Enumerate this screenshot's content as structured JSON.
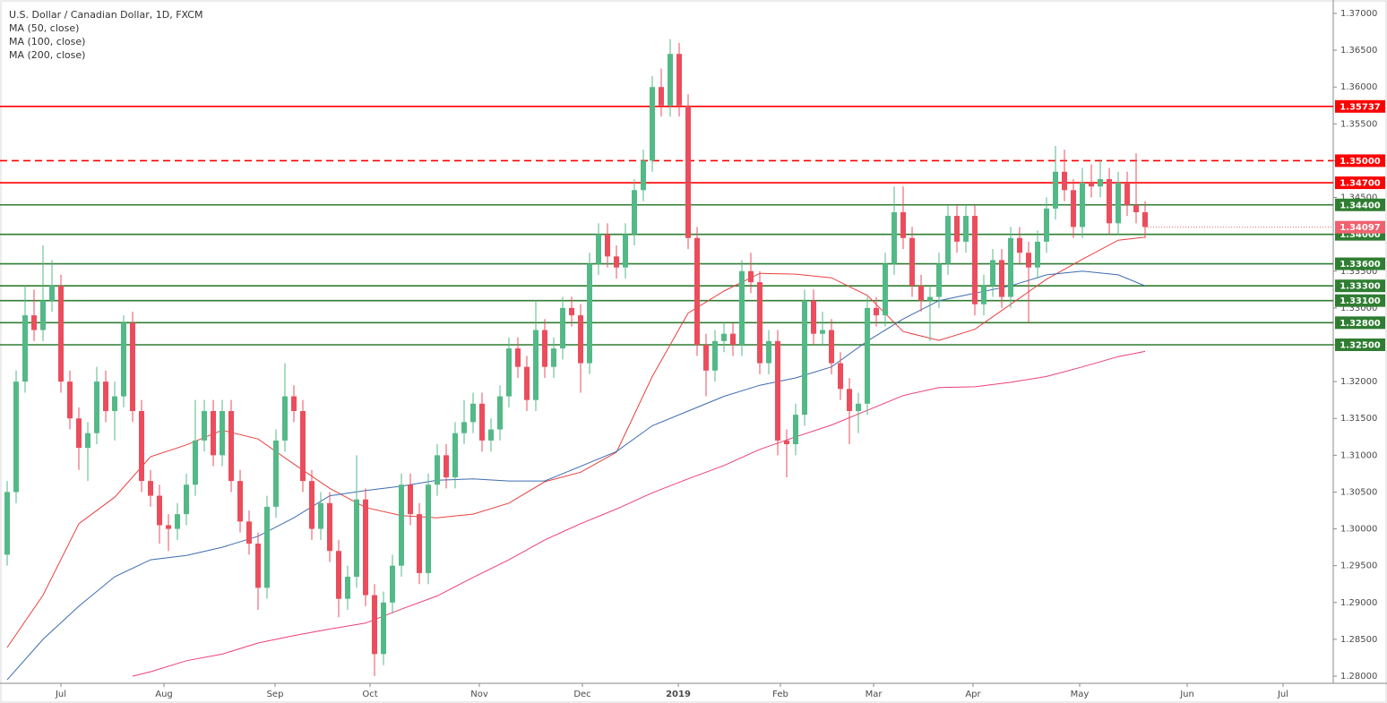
{
  "chart_data": {
    "type": "candlestick",
    "title": "U.S. Dollar / Canadian Dollar, 1D, FXCM",
    "up_color": "#53b987",
    "down_color": "#eb4d5c",
    "xlim": [
      -0.3,
      148
    ],
    "ylim": [
      1.27903,
      1.37182
    ],
    "grid": false,
    "yticks": [
      {
        "value": 1.37,
        "label": "1.37000"
      },
      {
        "value": 1.365,
        "label": "1.36500"
      },
      {
        "value": 1.36,
        "label": "1.36000"
      },
      {
        "value": 1.355,
        "label": "1.35500"
      },
      {
        "value": 1.35,
        "label": "1.35000"
      },
      {
        "value": 1.345,
        "label": "1.34500"
      },
      {
        "value": 1.34,
        "label": "1.34000"
      },
      {
        "value": 1.335,
        "label": "1.33500"
      },
      {
        "value": 1.33,
        "label": "1.33000"
      },
      {
        "value": 1.325,
        "label": "1.32500"
      },
      {
        "value": 1.32,
        "label": "1.32000"
      },
      {
        "value": 1.315,
        "label": "1.31500"
      },
      {
        "value": 1.31,
        "label": "1.31000"
      },
      {
        "value": 1.305,
        "label": "1.30500"
      },
      {
        "value": 1.3,
        "label": "1.30000"
      },
      {
        "value": 1.295,
        "label": "1.29500"
      },
      {
        "value": 1.29,
        "label": "1.29000"
      },
      {
        "value": 1.285,
        "label": "1.28500"
      },
      {
        "value": 1.28,
        "label": "1.28000"
      }
    ],
    "xticks": [
      {
        "value": 6,
        "label": "Jul"
      },
      {
        "value": 17.5,
        "label": "Aug"
      },
      {
        "value": 29.9,
        "label": "Sep"
      },
      {
        "value": 40.5,
        "label": "Oct"
      },
      {
        "value": 52.7,
        "label": "Nov"
      },
      {
        "value": 64.2,
        "label": "Dec"
      },
      {
        "value": 74.9,
        "label": "2019"
      },
      {
        "value": 86.3,
        "label": "Feb"
      },
      {
        "value": 96.7,
        "label": "Mar"
      },
      {
        "value": 107.8,
        "label": "Apr"
      },
      {
        "value": 119.7,
        "label": "May"
      },
      {
        "value": 131.7,
        "label": "Jun"
      },
      {
        "value": 142.4,
        "label": "Jul"
      }
    ],
    "candles": [
      [
        1.2965,
        1.3065,
        1.295,
        1.305
      ],
      [
        1.305,
        1.3215,
        1.3035,
        1.32
      ],
      [
        1.32,
        1.333,
        1.3185,
        1.329
      ],
      [
        1.329,
        1.3325,
        1.3255,
        1.327
      ],
      [
        1.327,
        1.3385,
        1.3255,
        1.331
      ],
      [
        1.331,
        1.3365,
        1.3295,
        1.333
      ],
      [
        1.333,
        1.3345,
        1.3185,
        1.32
      ],
      [
        1.32,
        1.3215,
        1.3135,
        1.315
      ],
      [
        1.315,
        1.3165,
        1.308,
        1.311
      ],
      [
        1.311,
        1.3145,
        1.3065,
        1.313
      ],
      [
        1.313,
        1.322,
        1.3115,
        1.32
      ],
      [
        1.32,
        1.3215,
        1.3145,
        1.316
      ],
      [
        1.316,
        1.32,
        1.312,
        1.318
      ],
      [
        1.318,
        1.329,
        1.3165,
        1.328
      ],
      [
        1.328,
        1.3295,
        1.3145,
        1.316
      ],
      [
        1.316,
        1.3175,
        1.305,
        1.3065
      ],
      [
        1.3065,
        1.308,
        1.303,
        1.3045
      ],
      [
        1.3045,
        1.306,
        1.298,
        1.3005
      ],
      [
        1.3005,
        1.302,
        1.297,
        1.3
      ],
      [
        1.3,
        1.3035,
        1.2985,
        1.302
      ],
      [
        1.302,
        1.3075,
        1.3005,
        1.306
      ],
      [
        1.306,
        1.3175,
        1.3045,
        1.312
      ],
      [
        1.312,
        1.3175,
        1.3105,
        1.316
      ],
      [
        1.316,
        1.3175,
        1.3085,
        1.31
      ],
      [
        1.31,
        1.3175,
        1.3085,
        1.316
      ],
      [
        1.316,
        1.3175,
        1.305,
        1.3065
      ],
      [
        1.3065,
        1.308,
        1.2995,
        1.301
      ],
      [
        1.301,
        1.3025,
        1.2965,
        1.298
      ],
      [
        1.298,
        1.2995,
        1.289,
        1.292
      ],
      [
        1.292,
        1.3045,
        1.2905,
        1.303
      ],
      [
        1.303,
        1.3135,
        1.3015,
        1.312
      ],
      [
        1.312,
        1.3225,
        1.3105,
        1.318
      ],
      [
        1.318,
        1.3195,
        1.3145,
        1.316
      ],
      [
        1.316,
        1.3175,
        1.305,
        1.3065
      ],
      [
        1.3065,
        1.308,
        1.2985,
        1.3
      ],
      [
        1.3,
        1.305,
        1.2985,
        1.3035
      ],
      [
        1.3035,
        1.305,
        1.2955,
        1.297
      ],
      [
        1.297,
        1.2985,
        1.288,
        1.2905
      ],
      [
        1.2905,
        1.295,
        1.289,
        1.2935
      ],
      [
        1.2935,
        1.31,
        1.292,
        1.304
      ],
      [
        1.304,
        1.3055,
        1.2895,
        1.291
      ],
      [
        1.291,
        1.2925,
        1.28,
        1.283
      ],
      [
        1.283,
        1.2915,
        1.2815,
        1.29
      ],
      [
        1.29,
        1.2965,
        1.2885,
        1.295
      ],
      [
        1.295,
        1.3075,
        1.2935,
        1.306
      ],
      [
        1.306,
        1.3075,
        1.3005,
        1.302
      ],
      [
        1.302,
        1.3035,
        1.2925,
        1.294
      ],
      [
        1.294,
        1.3075,
        1.2925,
        1.306
      ],
      [
        1.306,
        1.3115,
        1.3045,
        1.31
      ],
      [
        1.31,
        1.3115,
        1.3055,
        1.307
      ],
      [
        1.307,
        1.3145,
        1.3055,
        1.313
      ],
      [
        1.313,
        1.3175,
        1.3115,
        1.3145
      ],
      [
        1.3145,
        1.3185,
        1.313,
        1.317
      ],
      [
        1.317,
        1.3185,
        1.3105,
        1.312
      ],
      [
        1.312,
        1.315,
        1.3105,
        1.3135
      ],
      [
        1.3135,
        1.3195,
        1.312,
        1.318
      ],
      [
        1.318,
        1.326,
        1.3165,
        1.3245
      ],
      [
        1.3245,
        1.326,
        1.3205,
        1.322
      ],
      [
        1.322,
        1.3235,
        1.316,
        1.3175
      ],
      [
        1.3175,
        1.331,
        1.316,
        1.327
      ],
      [
        1.327,
        1.3285,
        1.3205,
        1.322
      ],
      [
        1.322,
        1.326,
        1.3205,
        1.3245
      ],
      [
        1.3245,
        1.3315,
        1.323,
        1.33
      ],
      [
        1.33,
        1.3315,
        1.3275,
        1.329
      ],
      [
        1.329,
        1.3305,
        1.3185,
        1.3225
      ],
      [
        1.3225,
        1.3375,
        1.321,
        1.336
      ],
      [
        1.336,
        1.3415,
        1.3345,
        1.34
      ],
      [
        1.34,
        1.3415,
        1.3355,
        1.337
      ],
      [
        1.337,
        1.3385,
        1.334,
        1.3355
      ],
      [
        1.3355,
        1.3415,
        1.334,
        1.34
      ],
      [
        1.34,
        1.3475,
        1.3385,
        1.346
      ],
      [
        1.346,
        1.3515,
        1.3445,
        1.35
      ],
      [
        1.35,
        1.3615,
        1.3485,
        1.36
      ],
      [
        1.36,
        1.3625,
        1.356,
        1.3575
      ],
      [
        1.3575,
        1.3665,
        1.356,
        1.3645
      ],
      [
        1.3645,
        1.366,
        1.356,
        1.3575
      ],
      [
        1.3575,
        1.359,
        1.338,
        1.3395
      ],
      [
        1.3395,
        1.341,
        1.3235,
        1.325
      ],
      [
        1.325,
        1.3265,
        1.318,
        1.3215
      ],
      [
        1.3215,
        1.327,
        1.32,
        1.3255
      ],
      [
        1.3255,
        1.328,
        1.324,
        1.3265
      ],
      [
        1.3265,
        1.328,
        1.3235,
        1.325
      ],
      [
        1.325,
        1.3365,
        1.3235,
        1.335
      ],
      [
        1.335,
        1.3375,
        1.332,
        1.3335
      ],
      [
        1.3335,
        1.335,
        1.321,
        1.3225
      ],
      [
        1.3225,
        1.327,
        1.321,
        1.3255
      ],
      [
        1.3255,
        1.327,
        1.31,
        1.312
      ],
      [
        1.312,
        1.3135,
        1.307,
        1.3115
      ],
      [
        1.3115,
        1.317,
        1.31,
        1.3155
      ],
      [
        1.3155,
        1.3325,
        1.314,
        1.331
      ],
      [
        1.331,
        1.3325,
        1.325,
        1.3265
      ],
      [
        1.3265,
        1.3295,
        1.325,
        1.327
      ],
      [
        1.327,
        1.3285,
        1.321,
        1.3225
      ],
      [
        1.3225,
        1.324,
        1.3175,
        1.319
      ],
      [
        1.319,
        1.3205,
        1.3115,
        1.316
      ],
      [
        1.316,
        1.3185,
        1.313,
        1.317
      ],
      [
        1.317,
        1.3315,
        1.3155,
        1.33
      ],
      [
        1.33,
        1.3315,
        1.3275,
        1.329
      ],
      [
        1.329,
        1.3375,
        1.3275,
        1.336
      ],
      [
        1.336,
        1.3465,
        1.3345,
        1.343
      ],
      [
        1.343,
        1.3465,
        1.338,
        1.3395
      ],
      [
        1.3395,
        1.341,
        1.3315,
        1.333
      ],
      [
        1.333,
        1.3345,
        1.3295,
        1.331
      ],
      [
        1.331,
        1.333,
        1.3255,
        1.3315
      ],
      [
        1.3315,
        1.3375,
        1.33,
        1.336
      ],
      [
        1.336,
        1.344,
        1.3345,
        1.3425
      ],
      [
        1.3425,
        1.344,
        1.3375,
        1.339
      ],
      [
        1.339,
        1.344,
        1.3375,
        1.3425
      ],
      [
        1.3425,
        1.344,
        1.329,
        1.3305
      ],
      [
        1.3305,
        1.3345,
        1.329,
        1.333
      ],
      [
        1.333,
        1.338,
        1.3315,
        1.3365
      ],
      [
        1.3365,
        1.338,
        1.33,
        1.3315
      ],
      [
        1.3315,
        1.341,
        1.33,
        1.3395
      ],
      [
        1.3395,
        1.341,
        1.336,
        1.3375
      ],
      [
        1.3375,
        1.339,
        1.328,
        1.3355
      ],
      [
        1.3355,
        1.3405,
        1.334,
        1.339
      ],
      [
        1.339,
        1.345,
        1.3375,
        1.3435
      ],
      [
        1.3435,
        1.352,
        1.342,
        1.3485
      ],
      [
        1.3485,
        1.3515,
        1.3445,
        1.346
      ],
      [
        1.346,
        1.3475,
        1.3395,
        1.341
      ],
      [
        1.341,
        1.349,
        1.3395,
        1.347
      ],
      [
        1.347,
        1.3495,
        1.345,
        1.3465
      ],
      [
        1.3465,
        1.35,
        1.345,
        1.3475
      ],
      [
        1.3475,
        1.349,
        1.34,
        1.3415
      ],
      [
        1.3415,
        1.3485,
        1.34,
        1.347
      ],
      [
        1.347,
        1.3485,
        1.3425,
        1.344
      ],
      [
        1.344,
        1.351,
        1.3415,
        1.343
      ],
      [
        1.343,
        1.3445,
        1.3395,
        1.341
      ]
    ],
    "moving_averages": [
      {
        "name": "MA (50, close)",
        "color": "#e8403f",
        "x": [
          0,
          4,
          8,
          12,
          16,
          20,
          24,
          28,
          32,
          36,
          40,
          44,
          48,
          52,
          56,
          60,
          64,
          68,
          72,
          76,
          80,
          84,
          88,
          92,
          96,
          100,
          104,
          108,
          112,
          116,
          120,
          124,
          127
        ],
        "values": [
          1.2839,
          1.291,
          1.3007,
          1.3043,
          1.3098,
          1.3114,
          1.3134,
          1.3122,
          1.3088,
          1.3055,
          1.3029,
          1.3018,
          1.3015,
          1.302,
          1.3035,
          1.3064,
          1.3077,
          1.3104,
          1.3207,
          1.3293,
          1.3323,
          1.3347,
          1.3346,
          1.3341,
          1.3317,
          1.3268,
          1.3256,
          1.3271,
          1.3305,
          1.3339,
          1.3366,
          1.3392,
          1.3396
        ]
      },
      {
        "name": "MA (100, close)",
        "color": "#3d6cb0",
        "x": [
          0,
          4,
          8,
          12,
          16,
          20,
          24,
          28,
          32,
          36,
          40,
          44,
          48,
          52,
          56,
          60,
          64,
          68,
          72,
          76,
          80,
          84,
          88,
          92,
          96,
          100,
          104,
          108,
          112,
          116,
          120,
          124,
          127
        ],
        "values": [
          1.2795,
          1.285,
          1.2895,
          1.2935,
          1.2958,
          1.2964,
          1.2975,
          1.299,
          1.3015,
          1.3045,
          1.3052,
          1.3058,
          1.3066,
          1.3068,
          1.3065,
          1.3065,
          1.3085,
          1.3105,
          1.314,
          1.316,
          1.318,
          1.3195,
          1.3205,
          1.322,
          1.3255,
          1.3285,
          1.331,
          1.332,
          1.333,
          1.3345,
          1.335,
          1.3345,
          1.333
        ]
      },
      {
        "name": "MA (200, close)",
        "color": "#ec3f77",
        "x": [
          14,
          16,
          20,
          24,
          28,
          32,
          36,
          40,
          44,
          48,
          52,
          56,
          60,
          64,
          68,
          72,
          76,
          80,
          84,
          88,
          92,
          96,
          100,
          104,
          108,
          112,
          116,
          120,
          124,
          127
        ],
        "values": [
          1.28,
          1.2806,
          1.2821,
          1.283,
          1.2845,
          1.2855,
          1.2864,
          1.2872,
          1.2891,
          1.2909,
          1.2934,
          1.2958,
          1.2985,
          1.3007,
          1.3027,
          1.3049,
          1.3068,
          1.3086,
          1.3108,
          1.3125,
          1.3141,
          1.3161,
          1.3181,
          1.3192,
          1.3193,
          1.3199,
          1.3207,
          1.322,
          1.3234,
          1.3241
        ]
      }
    ],
    "levels": [
      {
        "value": 1.35737,
        "color": "#ff0000",
        "dashed": false
      },
      {
        "value": 1.35,
        "label": "1.35000",
        "color": "#ff0000",
        "dashed": true
      },
      {
        "value": 1.347,
        "label": "1.34700",
        "color": "#ff0000",
        "dashed": false
      },
      {
        "value": 1.344,
        "label": "1.34400",
        "color": "#2f7d32",
        "dashed": false
      },
      {
        "value": 1.34,
        "label": "1.34000",
        "color": "#2f7d32",
        "dashed": false
      },
      {
        "value": 1.336,
        "label": "1.33600",
        "color": "#2f7d32",
        "dashed": false
      },
      {
        "value": 1.333,
        "label": "1.33300",
        "color": "#2f7d32",
        "dashed": false
      },
      {
        "value": 1.331,
        "label": "1.33100",
        "color": "#2f7d32",
        "dashed": false
      },
      {
        "value": 1.328,
        "label": "1.32800",
        "color": "#2f7d32",
        "dashed": false
      },
      {
        "value": 1.325,
        "label": "1.32500",
        "color": "#2f7d32",
        "dashed": false
      }
    ],
    "last_price": {
      "value": 1.34097,
      "color": "#f0616f"
    }
  }
}
